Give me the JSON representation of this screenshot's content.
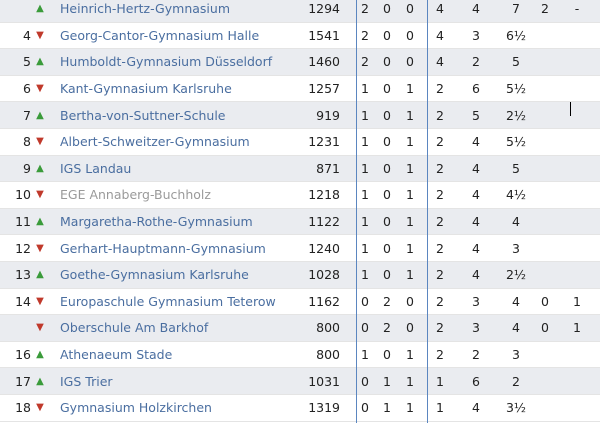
{
  "table": {
    "rows": [
      {
        "rank": "",
        "trend": "up",
        "name": "Heinrich-Hertz-Gymnasium",
        "rating": "1294",
        "w": "2",
        "d": "0",
        "l": "0",
        "mp": "4",
        "bp": "4",
        "sb": "7",
        "x1": "2",
        "x2": "-",
        "shaded": true,
        "muted": false
      },
      {
        "rank": "4",
        "trend": "down",
        "name": "Georg-Cantor-Gymnasium Halle",
        "rating": "1541",
        "w": "2",
        "d": "0",
        "l": "0",
        "mp": "4",
        "bp": "3",
        "sb": "6½",
        "x1": "",
        "x2": "",
        "shaded": false,
        "muted": false
      },
      {
        "rank": "5",
        "trend": "up",
        "name": "Humboldt-Gymnasium Düsseldorf",
        "rating": "1460",
        "w": "2",
        "d": "0",
        "l": "0",
        "mp": "4",
        "bp": "2",
        "sb": "5",
        "x1": "",
        "x2": "",
        "shaded": true,
        "muted": false
      },
      {
        "rank": "6",
        "trend": "down",
        "name": "Kant-Gymnasium Karlsruhe",
        "rating": "1257",
        "w": "1",
        "d": "0",
        "l": "1",
        "mp": "2",
        "bp": "6",
        "sb": "5½",
        "x1": "",
        "x2": "",
        "shaded": false,
        "muted": false
      },
      {
        "rank": "7",
        "trend": "up",
        "name": "Bertha-von-Suttner-Schule",
        "rating": "919",
        "w": "1",
        "d": "0",
        "l": "1",
        "mp": "2",
        "bp": "5",
        "sb": "2½",
        "x1": "",
        "x2": "",
        "shaded": true,
        "muted": false
      },
      {
        "rank": "8",
        "trend": "down",
        "name": "Albert-Schweitzer-Gymnasium",
        "rating": "1231",
        "w": "1",
        "d": "0",
        "l": "1",
        "mp": "2",
        "bp": "4",
        "sb": "5½",
        "x1": "",
        "x2": "",
        "shaded": false,
        "muted": false
      },
      {
        "rank": "9",
        "trend": "up",
        "name": "IGS Landau",
        "rating": "871",
        "w": "1",
        "d": "0",
        "l": "1",
        "mp": "2",
        "bp": "4",
        "sb": "5",
        "x1": "",
        "x2": "",
        "shaded": true,
        "muted": false
      },
      {
        "rank": "10",
        "trend": "down",
        "name": "EGE Annaberg-Buchholz",
        "rating": "1218",
        "w": "1",
        "d": "0",
        "l": "1",
        "mp": "2",
        "bp": "4",
        "sb": "4½",
        "x1": "",
        "x2": "",
        "shaded": false,
        "muted": true
      },
      {
        "rank": "11",
        "trend": "up",
        "name": "Margaretha-Rothe-Gymnasium",
        "rating": "1122",
        "w": "1",
        "d": "0",
        "l": "1",
        "mp": "2",
        "bp": "4",
        "sb": "4",
        "x1": "",
        "x2": "",
        "shaded": true,
        "muted": false
      },
      {
        "rank": "12",
        "trend": "down",
        "name": "Gerhart-Hauptmann-Gymnasium",
        "rating": "1240",
        "w": "1",
        "d": "0",
        "l": "1",
        "mp": "2",
        "bp": "4",
        "sb": "3",
        "x1": "",
        "x2": "",
        "shaded": false,
        "muted": false
      },
      {
        "rank": "13",
        "trend": "up",
        "name": "Goethe-Gymnasium Karlsruhe",
        "rating": "1028",
        "w": "1",
        "d": "0",
        "l": "1",
        "mp": "2",
        "bp": "4",
        "sb": "2½",
        "x1": "",
        "x2": "",
        "shaded": true,
        "muted": false
      },
      {
        "rank": "14",
        "trend": "down",
        "name": "Europaschule Gymnasium Teterow",
        "rating": "1162",
        "w": "0",
        "d": "2",
        "l": "0",
        "mp": "2",
        "bp": "3",
        "sb": "4",
        "x1": "0",
        "x2": "1",
        "shaded": false,
        "muted": false
      },
      {
        "rank": "",
        "trend": "down",
        "name": "Oberschule Am Barkhof",
        "rating": "800",
        "w": "0",
        "d": "2",
        "l": "0",
        "mp": "2",
        "bp": "3",
        "sb": "4",
        "x1": "0",
        "x2": "1",
        "shaded": true,
        "muted": false
      },
      {
        "rank": "16",
        "trend": "up",
        "name": "Athenaeum Stade",
        "rating": "800",
        "w": "1",
        "d": "0",
        "l": "1",
        "mp": "2",
        "bp": "2",
        "sb": "3",
        "x1": "",
        "x2": "",
        "shaded": false,
        "muted": false
      },
      {
        "rank": "17",
        "trend": "up",
        "name": "IGS Trier",
        "rating": "1031",
        "w": "0",
        "d": "1",
        "l": "1",
        "mp": "1",
        "bp": "6",
        "sb": "2",
        "x1": "",
        "x2": "",
        "shaded": true,
        "muted": false
      },
      {
        "rank": "18",
        "trend": "down",
        "name": "Gymnasium Holzkirchen",
        "rating": "1319",
        "w": "0",
        "d": "1",
        "l": "1",
        "mp": "1",
        "bp": "4",
        "sb": "3½",
        "x1": "",
        "x2": "",
        "shaded": false,
        "muted": false
      }
    ]
  },
  "icons": {
    "up": "triangle-up-icon",
    "down": "triangle-down-icon"
  },
  "colors": {
    "link": "#4a6ea0",
    "muted": "#9a9a9a",
    "up": "#3a9b3a",
    "down": "#c0392b",
    "shaded_row": "#eaecf0",
    "divider": "#5b86c0"
  }
}
